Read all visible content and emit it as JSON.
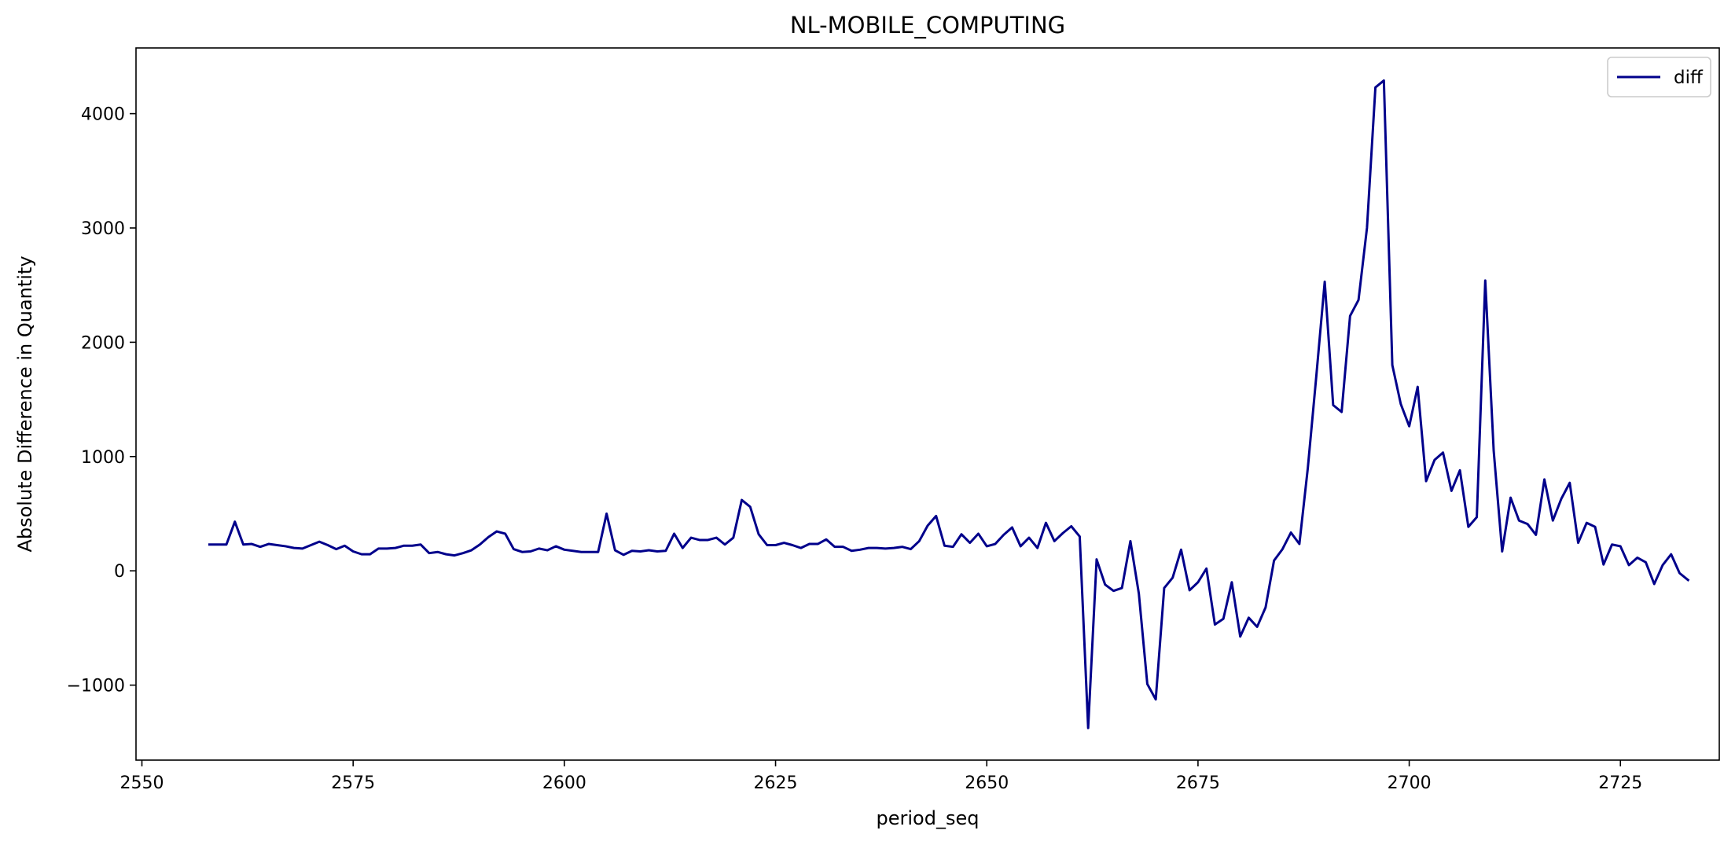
{
  "chart_data": {
    "type": "line",
    "title": "NL-MOBILE_COMPUTING",
    "xlabel": "period_seq",
    "ylabel": "Absolute Difference in Quantity",
    "xlim": [
      2549.3,
      2736.7
    ],
    "ylim": [
      -1656,
      4575
    ],
    "xticks": [
      2550,
      2575,
      2600,
      2625,
      2650,
      2675,
      2700,
      2725
    ],
    "xtick_labels": [
      "2550",
      "2575",
      "2600",
      "2625",
      "2650",
      "2675",
      "2700",
      "2725"
    ],
    "yticks": [
      -1000,
      0,
      1000,
      2000,
      3000,
      4000
    ],
    "ytick_labels": [
      "−1000",
      "0",
      "1000",
      "2000",
      "3000",
      "4000"
    ],
    "grid": false,
    "legend": {
      "position": "top-right"
    },
    "series": [
      {
        "name": "diff",
        "color": "#00008b",
        "x": [
          2558,
          2559,
          2560,
          2561,
          2562,
          2563,
          2564,
          2565,
          2566,
          2567,
          2568,
          2569,
          2570,
          2571,
          2572,
          2573,
          2574,
          2575,
          2576,
          2577,
          2578,
          2579,
          2580,
          2581,
          2582,
          2583,
          2584,
          2585,
          2586,
          2587,
          2588,
          2589,
          2590,
          2591,
          2592,
          2593,
          2594,
          2595,
          2596,
          2597,
          2598,
          2599,
          2600,
          2601,
          2602,
          2603,
          2604,
          2605,
          2606,
          2607,
          2608,
          2609,
          2610,
          2611,
          2612,
          2613,
          2614,
          2615,
          2616,
          2617,
          2618,
          2619,
          2620,
          2621,
          2622,
          2623,
          2624,
          2625,
          2626,
          2627,
          2628,
          2629,
          2630,
          2631,
          2632,
          2633,
          2634,
          2635,
          2636,
          2637,
          2638,
          2639,
          2640,
          2641,
          2642,
          2643,
          2644,
          2645,
          2646,
          2647,
          2648,
          2649,
          2650,
          2651,
          2652,
          2653,
          2654,
          2655,
          2656,
          2657,
          2658,
          2659,
          2660,
          2661,
          2662,
          2663,
          2664,
          2665,
          2666,
          2667,
          2668,
          2669,
          2670,
          2671,
          2672,
          2673,
          2674,
          2675,
          2676,
          2677,
          2678,
          2679,
          2680,
          2681,
          2682,
          2683,
          2684,
          2685,
          2686,
          2687,
          2688,
          2689,
          2690,
          2691,
          2692,
          2693,
          2694,
          2695,
          2696,
          2697,
          2698,
          2699,
          2700,
          2701,
          2702,
          2703,
          2704,
          2705,
          2706,
          2707,
          2708,
          2709,
          2710,
          2711,
          2712,
          2713,
          2714,
          2715,
          2716,
          2717,
          2718,
          2719,
          2720,
          2721,
          2722,
          2723,
          2724,
          2725,
          2726,
          2727,
          2728,
          2729,
          2730,
          2731,
          2732,
          2733
        ],
        "values": [
          230,
          230,
          230,
          430,
          230,
          235,
          210,
          235,
          225,
          215,
          200,
          195,
          225,
          255,
          225,
          190,
          220,
          170,
          145,
          145,
          195,
          195,
          200,
          220,
          220,
          230,
          155,
          165,
          145,
          135,
          155,
          180,
          230,
          295,
          345,
          325,
          190,
          165,
          170,
          195,
          180,
          215,
          185,
          175,
          165,
          165,
          165,
          500,
          180,
          140,
          175,
          170,
          180,
          170,
          175,
          325,
          200,
          290,
          270,
          270,
          290,
          230,
          290,
          620,
          560,
          320,
          225,
          225,
          245,
          225,
          200,
          235,
          235,
          275,
          210,
          210,
          175,
          185,
          200,
          200,
          195,
          200,
          210,
          190,
          260,
          395,
          480,
          220,
          210,
          320,
          245,
          325,
          215,
          235,
          315,
          380,
          215,
          290,
          200,
          420,
          260,
          330,
          390,
          300,
          -1375,
          100,
          -120,
          -175,
          -150,
          260,
          -200,
          -990,
          -1125,
          -150,
          -60,
          185,
          -170,
          -100,
          20,
          -470,
          -420,
          -100,
          -575,
          -410,
          -490,
          -320,
          90,
          190,
          335,
          235,
          900,
          1700,
          2530,
          1450,
          1390,
          2230,
          2370,
          3000,
          4230,
          4290,
          1800,
          1460,
          1265,
          1610,
          785,
          970,
          1035,
          700,
          880,
          385,
          470,
          2540,
          1050,
          170,
          640,
          440,
          410,
          315,
          800,
          440,
          630,
          770,
          245,
          420,
          385,
          55,
          230,
          215,
          50,
          115,
          75,
          -115,
          50,
          145,
          -20,
          -80
        ]
      }
    ]
  }
}
